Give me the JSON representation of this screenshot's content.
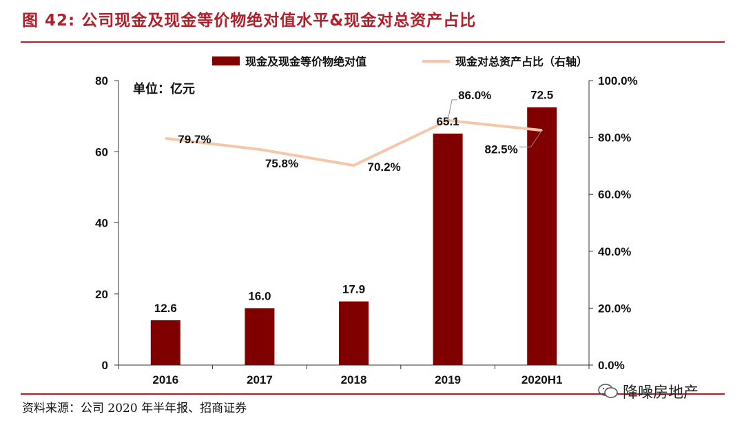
{
  "figure": {
    "title": "图 42:  公司现金及现金等价物绝对值水平&现金对总资产占比",
    "source": "资料来源：公司 2020 年半年报、招商证券",
    "watermark": "降噪房地产"
  },
  "colors": {
    "bar": "#800000",
    "line": "#f7c6a8",
    "accent": "#b0202a"
  },
  "chart_data": {
    "type": "bar+line",
    "categories": [
      "2016",
      "2017",
      "2018",
      "2019",
      "2020H1"
    ],
    "unit_label": "单位：亿元",
    "series": [
      {
        "name": "现金及现金等价物绝对值",
        "type": "bar",
        "axis": "left",
        "values": [
          12.6,
          16.0,
          17.9,
          65.1,
          72.5
        ],
        "labels": [
          "12.6",
          "16.0",
          "17.9",
          "65.1",
          "72.5"
        ]
      },
      {
        "name": "现金对总资产占比（右轴）",
        "type": "line",
        "axis": "right",
        "values": [
          79.7,
          75.8,
          70.2,
          86.0,
          82.5
        ],
        "labels": [
          "79.7%",
          "75.8%",
          "70.2%",
          "86.0%",
          "82.5%"
        ]
      }
    ],
    "left_axis": {
      "ylim": [
        0,
        80
      ],
      "ticks": [
        "0",
        "20",
        "40",
        "60",
        "80"
      ]
    },
    "right_axis": {
      "ylim": [
        0,
        100
      ],
      "ticks": [
        "0.0%",
        "20.0%",
        "40.0%",
        "60.0%",
        "80.0%",
        "100.0%"
      ]
    },
    "legend_position": "top"
  }
}
